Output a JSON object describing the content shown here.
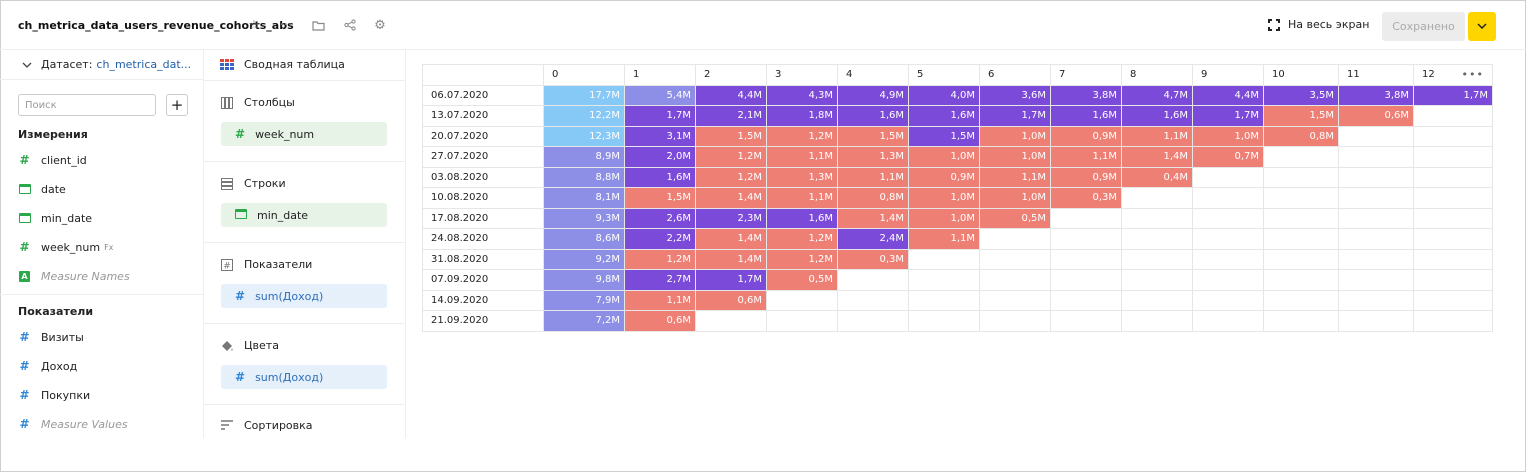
{
  "header": {
    "title": "ch_metrica_data_users_revenue_cohorts_abs",
    "icons": [
      "star-icon",
      "ellipsis-icon",
      "folder-icon",
      "share-icon",
      "gear-icon"
    ],
    "fullscreen_label": "На весь экран",
    "save_label": "Сохранено"
  },
  "dataset": {
    "label": "Датасет:",
    "name": "ch_metrica_dat...",
    "search_placeholder": "Поиск",
    "dimensions_title": "Измерения",
    "dimensions": [
      {
        "name": "client_id",
        "icon": "hash-icon"
      },
      {
        "name": "date",
        "icon": "calendar-icon"
      },
      {
        "name": "min_date",
        "icon": "calendar-icon"
      },
      {
        "name": "week_num",
        "icon": "hash-icon",
        "badge": "Fx"
      },
      {
        "name": "Measure Names",
        "icon": "text-icon"
      }
    ],
    "measures_title": "Показатели",
    "measures": [
      {
        "name": "Визиты"
      },
      {
        "name": "Доход"
      },
      {
        "name": "Покупки"
      },
      {
        "name": "Measure Values"
      }
    ]
  },
  "sections": {
    "chart_type": "Сводная таблица",
    "columns": {
      "title": "Столбцы",
      "field": "week_num"
    },
    "rows": {
      "title": "Строки",
      "field": "min_date"
    },
    "measures": {
      "title": "Показатели",
      "field": "sum(Доход)"
    },
    "colors": {
      "title": "Цвета",
      "field": "sum(Доход)"
    },
    "sort": {
      "title": "Сортировка"
    }
  },
  "colors": {
    "light_blue": "#86c8f6",
    "blue": "#8d8fe6",
    "purple": "#7b4ad9",
    "salmon": "#ee7f74",
    "accent_yellow": "#ffd500"
  },
  "table": {
    "columns": [
      "",
      "0",
      "1",
      "2",
      "3",
      "4",
      "5",
      "6",
      "7",
      "8",
      "9",
      "10",
      "11",
      "12"
    ],
    "rows": [
      {
        "label": "06.07.2020",
        "cells": [
          [
            "17,7M",
            "lb"
          ],
          [
            "5,4M",
            "b"
          ],
          [
            "4,4M",
            "p"
          ],
          [
            "4,3M",
            "p"
          ],
          [
            "4,9M",
            "p"
          ],
          [
            "4,0M",
            "p"
          ],
          [
            "3,6M",
            "p"
          ],
          [
            "3,8M",
            "p"
          ],
          [
            "4,7M",
            "p"
          ],
          [
            "4,4M",
            "p"
          ],
          [
            "3,5M",
            "p"
          ],
          [
            "3,8M",
            "p"
          ],
          [
            "1,7M",
            "p"
          ]
        ]
      },
      {
        "label": "13.07.2020",
        "cells": [
          [
            "12,2M",
            "lb"
          ],
          [
            "1,7M",
            "p"
          ],
          [
            "2,1M",
            "p"
          ],
          [
            "1,8M",
            "p"
          ],
          [
            "1,6M",
            "p"
          ],
          [
            "1,6M",
            "p"
          ],
          [
            "1,7M",
            "p"
          ],
          [
            "1,6M",
            "p"
          ],
          [
            "1,6M",
            "p"
          ],
          [
            "1,7M",
            "p"
          ],
          [
            "1,5M",
            "s"
          ],
          [
            "0,6M",
            "s"
          ]
        ]
      },
      {
        "label": "20.07.2020",
        "cells": [
          [
            "12,3M",
            "lb"
          ],
          [
            "3,1M",
            "p"
          ],
          [
            "1,5M",
            "s"
          ],
          [
            "1,2M",
            "s"
          ],
          [
            "1,5M",
            "s"
          ],
          [
            "1,5M",
            "p"
          ],
          [
            "1,0M",
            "s"
          ],
          [
            "0,9M",
            "s"
          ],
          [
            "1,1M",
            "s"
          ],
          [
            "1,0M",
            "s"
          ],
          [
            "0,8M",
            "s"
          ]
        ]
      },
      {
        "label": "27.07.2020",
        "cells": [
          [
            "8,9M",
            "b"
          ],
          [
            "2,0M",
            "p"
          ],
          [
            "1,2M",
            "s"
          ],
          [
            "1,1M",
            "s"
          ],
          [
            "1,3M",
            "s"
          ],
          [
            "1,0M",
            "s"
          ],
          [
            "1,0M",
            "s"
          ],
          [
            "1,1M",
            "s"
          ],
          [
            "1,4M",
            "s"
          ],
          [
            "0,7M",
            "s"
          ]
        ]
      },
      {
        "label": "03.08.2020",
        "cells": [
          [
            "8,8M",
            "b"
          ],
          [
            "1,6M",
            "p"
          ],
          [
            "1,2M",
            "s"
          ],
          [
            "1,3M",
            "s"
          ],
          [
            "1,1M",
            "s"
          ],
          [
            "0,9M",
            "s"
          ],
          [
            "1,1M",
            "s"
          ],
          [
            "0,9M",
            "s"
          ],
          [
            "0,4M",
            "s"
          ]
        ]
      },
      {
        "label": "10.08.2020",
        "cells": [
          [
            "8,1M",
            "b"
          ],
          [
            "1,5M",
            "s"
          ],
          [
            "1,4M",
            "s"
          ],
          [
            "1,1M",
            "s"
          ],
          [
            "0,8M",
            "s"
          ],
          [
            "1,0M",
            "s"
          ],
          [
            "1,0M",
            "s"
          ],
          [
            "0,3M",
            "s"
          ]
        ]
      },
      {
        "label": "17.08.2020",
        "cells": [
          [
            "9,3M",
            "b"
          ],
          [
            "2,6M",
            "p"
          ],
          [
            "2,3M",
            "p"
          ],
          [
            "1,6M",
            "p"
          ],
          [
            "1,4M",
            "s"
          ],
          [
            "1,0M",
            "s"
          ],
          [
            "0,5M",
            "s"
          ]
        ]
      },
      {
        "label": "24.08.2020",
        "cells": [
          [
            "8,6M",
            "b"
          ],
          [
            "2,2M",
            "p"
          ],
          [
            "1,4M",
            "s"
          ],
          [
            "1,2M",
            "s"
          ],
          [
            "2,4M",
            "p"
          ],
          [
            "1,1M",
            "s"
          ]
        ]
      },
      {
        "label": "31.08.2020",
        "cells": [
          [
            "9,2M",
            "b"
          ],
          [
            "1,2M",
            "s"
          ],
          [
            "1,4M",
            "s"
          ],
          [
            "1,2M",
            "s"
          ],
          [
            "0,3M",
            "s"
          ]
        ]
      },
      {
        "label": "07.09.2020",
        "cells": [
          [
            "9,8M",
            "b"
          ],
          [
            "2,7M",
            "p"
          ],
          [
            "1,7M",
            "p"
          ],
          [
            "0,5M",
            "s"
          ]
        ]
      },
      {
        "label": "14.09.2020",
        "cells": [
          [
            "7,9M",
            "b"
          ],
          [
            "1,1M",
            "s"
          ],
          [
            "0,6M",
            "s"
          ]
        ]
      },
      {
        "label": "21.09.2020",
        "cells": [
          [
            "7,2M",
            "b"
          ],
          [
            "0,6M",
            "s"
          ]
        ]
      }
    ]
  }
}
